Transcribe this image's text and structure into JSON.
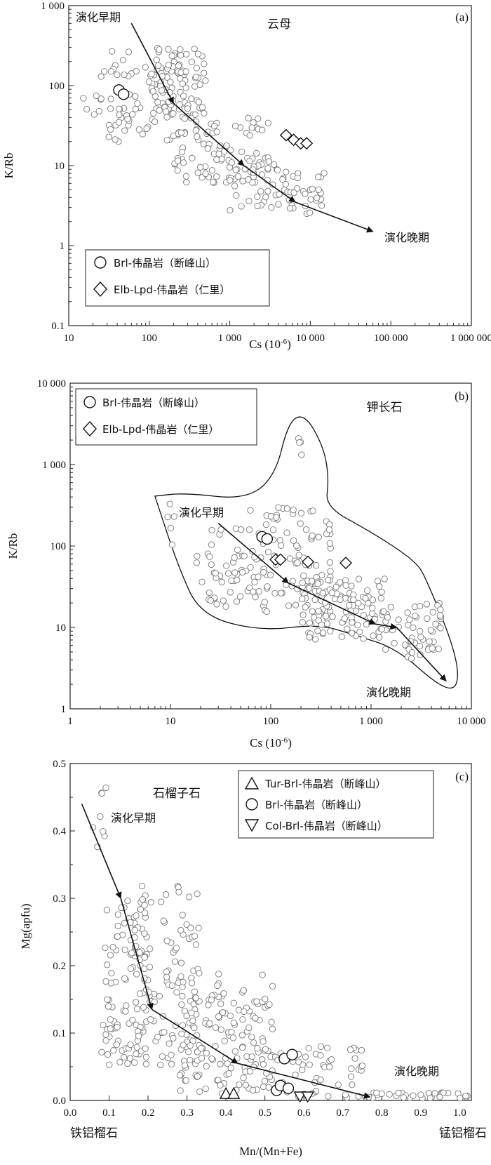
{
  "chart_data": [
    {
      "panel": "a",
      "type": "scatter",
      "panel_label": "(a)",
      "mineral_label": "云母",
      "xlabel": "Cs (10",
      "xlabel_sup": "-6",
      "xlabel_close": ")",
      "ylabel": "K/Rb",
      "xscale": "log",
      "yscale": "log",
      "xlim": [
        10,
        1000000
      ],
      "ylim": [
        0.1,
        1000
      ],
      "xticks": [
        10,
        100,
        1000,
        10000,
        100000,
        1000000
      ],
      "xtick_labels": [
        "10",
        "100",
        "1 000",
        "10 000",
        "100 000",
        "1 000 000"
      ],
      "yticks": [
        0.1,
        1,
        10,
        100,
        1000
      ],
      "ytick_labels": [
        "0.1",
        "1",
        "10",
        "100",
        "1 000"
      ],
      "early_label": "演化早期",
      "late_label": "演化晚期",
      "trend": [
        [
          60,
          600
        ],
        [
          200,
          60
        ],
        [
          1500,
          10
        ],
        [
          6500,
          3.5
        ],
        [
          60000,
          1.5
        ]
      ],
      "early_point": [
        80,
        600
      ],
      "late_point": [
        350000,
        1.1
      ],
      "cloud": [
        {
          "x": [
            100,
            500
          ],
          "y": [
            40,
            300
          ],
          "n": 90
        },
        {
          "x": [
            30,
            200
          ],
          "y": [
            20,
            200
          ],
          "n": 55
        },
        {
          "x": [
            200,
            3000
          ],
          "y": [
            6,
            40
          ],
          "n": 90
        },
        {
          "x": [
            1000,
            15000
          ],
          "y": [
            2.5,
            12
          ],
          "n": 70
        },
        {
          "x": [
            15,
            60
          ],
          "y": [
            25,
            300
          ],
          "n": 18
        }
      ],
      "series": [
        {
          "name": "Brl-伟晶岩（断峰山）",
          "marker": "circle",
          "x": [
            42,
            48
          ],
          "y": [
            88,
            78
          ]
        },
        {
          "name": "Elb-Lpd-伟晶岩（仁里）",
          "marker": "diamond",
          "x": [
            5000,
            6200,
            7600,
            9000
          ],
          "y": [
            24,
            21,
            19,
            19
          ]
        }
      ],
      "legend": "bottom-left"
    },
    {
      "panel": "b",
      "type": "scatter",
      "panel_label": "(b)",
      "mineral_label": "钾长石",
      "xlabel": "Cs (10",
      "xlabel_sup": "-6",
      "xlabel_close": ")",
      "ylabel": "K/Rb",
      "xscale": "log",
      "yscale": "log",
      "xlim": [
        1,
        10000
      ],
      "ylim": [
        1,
        10000
      ],
      "xticks": [
        1,
        10,
        100,
        1000,
        10000
      ],
      "xtick_labels": [
        "1",
        "10",
        "100",
        "1 000",
        "10 000"
      ],
      "yticks": [
        1,
        10,
        100,
        1000,
        10000
      ],
      "ytick_labels": [
        "1",
        "10",
        "100",
        "1 000",
        "10 000"
      ],
      "early_label": "演化早期",
      "late_label": "演化晚期",
      "trend": [
        [
          30,
          190
        ],
        [
          150,
          35
        ],
        [
          1100,
          11
        ],
        [
          1800,
          10
        ],
        [
          5600,
          2.2
        ]
      ],
      "field": [
        [
          7,
          410
        ],
        [
          14,
          450
        ],
        [
          55,
          370
        ],
        [
          110,
          700
        ],
        [
          150,
          3400
        ],
        [
          220,
          4200
        ],
        [
          340,
          1600
        ],
        [
          380,
          650
        ],
        [
          350,
          300
        ],
        [
          1000,
          150
        ],
        [
          2800,
          65
        ],
        [
          3600,
          38
        ],
        [
          7000,
          5
        ],
        [
          7500,
          1.8
        ],
        [
          5000,
          1.8
        ],
        [
          1800,
          5.5
        ],
        [
          700,
          8
        ],
        [
          300,
          11
        ],
        [
          80,
          9
        ],
        [
          20,
          14
        ],
        [
          12,
          55
        ],
        [
          7,
          410
        ]
      ],
      "cloud": [
        {
          "x": [
            18,
            60
          ],
          "y": [
            18,
            170
          ],
          "n": 45
        },
        {
          "x": [
            60,
            400
          ],
          "y": [
            15,
            300
          ],
          "n": 110
        },
        {
          "x": [
            200,
            1500
          ],
          "y": [
            7,
            40
          ],
          "n": 110
        },
        {
          "x": [
            1200,
            5000
          ],
          "y": [
            4,
            20
          ],
          "n": 55
        },
        {
          "x": [
            9,
            11
          ],
          "y": [
            70,
            330
          ],
          "n": 5
        },
        {
          "x": [
            170,
            210
          ],
          "y": [
            700,
            3600
          ],
          "n": 4
        }
      ],
      "series": [
        {
          "name": "Brl-伟晶岩（断峰山）",
          "marker": "circle",
          "x": [
            82,
            92
          ],
          "y": [
            130,
            122
          ]
        },
        {
          "name": "Elb-Lpd-伟晶岩（仁里）",
          "marker": "diamond",
          "x": [
            112,
            125,
            235,
            560
          ],
          "y": [
            68,
            68,
            64,
            62
          ]
        }
      ],
      "legend": "top-left"
    },
    {
      "panel": "c",
      "type": "scatter",
      "panel_label": "(c)",
      "mineral_label": "石榴子石",
      "xlabel": "Mn/(Mn+Fe)",
      "ylabel": "Mg(apfu)",
      "xscale": "linear",
      "yscale": "linear",
      "xlim": [
        0,
        1.03
      ],
      "ylim": [
        0,
        0.5
      ],
      "xticks": [
        0,
        0.1,
        0.2,
        0.3,
        0.4,
        0.5,
        0.6,
        0.7,
        0.8,
        0.9,
        1.0
      ],
      "xtick_labels": [
        "0.0",
        "0.1",
        "0.2",
        "0.3",
        "0.4",
        "0.5",
        "0.6",
        "0.7",
        "0.8",
        "0.9",
        "1.0"
      ],
      "yticks": [
        0,
        0.1,
        0.2,
        0.3,
        0.4,
        0.5
      ],
      "ytick_labels": [
        "0.0",
        "0.1",
        "0.2",
        "0.3",
        "0.4",
        "0.5"
      ],
      "x_left_end": "铁铝榴石",
      "x_right_end": "锰铝榴石",
      "early_label": "演化早期",
      "late_label": "演化晚期",
      "trend": [
        [
          0.03,
          0.44
        ],
        [
          0.13,
          0.3
        ],
        [
          0.21,
          0.135
        ],
        [
          0.43,
          0.055
        ],
        [
          0.77,
          0.005
        ]
      ],
      "cloud": [
        {
          "x": [
            0.05,
            0.1
          ],
          "y": [
            0.33,
            0.49
          ],
          "n": 8
        },
        {
          "x": [
            0.08,
            0.2
          ],
          "y": [
            0.05,
            0.3
          ],
          "n": 90
        },
        {
          "x": [
            0.15,
            0.33
          ],
          "y": [
            0.05,
            0.32
          ],
          "n": 120
        },
        {
          "x": [
            0.28,
            0.52
          ],
          "y": [
            0.01,
            0.19
          ],
          "n": 150
        },
        {
          "x": [
            0.5,
            0.75
          ],
          "y": [
            0.0,
            0.08
          ],
          "n": 60
        },
        {
          "x": [
            0.7,
            1.03
          ],
          "y": [
            0.0,
            0.012
          ],
          "n": 45
        }
      ],
      "series": [
        {
          "name": "Tur-Brl-伟晶岩（断峰山）",
          "marker": "triangle-up",
          "x": [
            0.4,
            0.42
          ],
          "y": [
            0.005,
            0.005
          ]
        },
        {
          "name": "Brl-伟晶岩（断峰山）",
          "marker": "circle",
          "x": [
            0.53,
            0.54,
            0.56,
            0.55,
            0.57
          ],
          "y": [
            0.015,
            0.022,
            0.018,
            0.062,
            0.068
          ]
        },
        {
          "name": "Col-Brl-伟晶岩（断峰山）",
          "marker": "triangle-down",
          "x": [
            0.59,
            0.61
          ],
          "y": [
            0.0,
            0.0
          ]
        }
      ],
      "legend": "top-right"
    }
  ]
}
